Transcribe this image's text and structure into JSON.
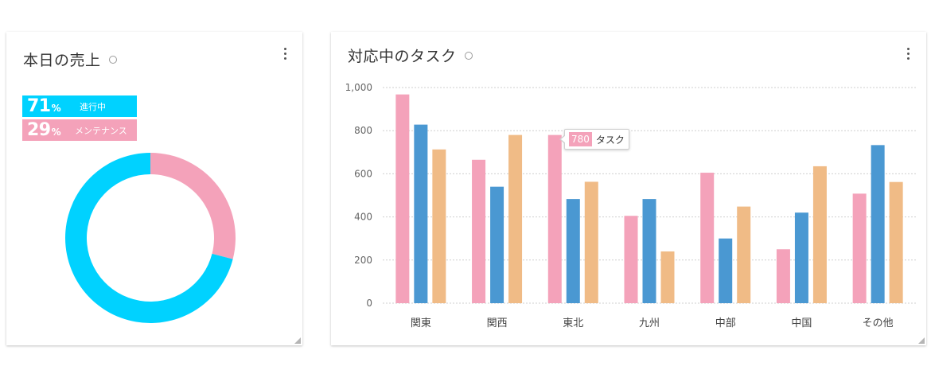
{
  "sales_card": {
    "title": "本日の売上",
    "legend": [
      {
        "percent": "71",
        "unit": "%",
        "label": "進行中",
        "color": "#00d2ff"
      },
      {
        "percent": "29",
        "unit": "%",
        "label": "メンテナンス",
        "color": "#f4a2ba"
      }
    ]
  },
  "tasks_card": {
    "title": "対応中のタスク",
    "tooltip": {
      "value": "780",
      "label": "タスク"
    }
  },
  "chart_data": [
    {
      "type": "pie",
      "title": "本日の売上",
      "donut": true,
      "categories": [
        "進行中",
        "メンテナンス"
      ],
      "values": [
        71,
        29
      ],
      "colors": [
        "#00d2ff",
        "#f4a2ba"
      ]
    },
    {
      "type": "bar",
      "title": "対応中のタスク",
      "categories": [
        "関東",
        "関西",
        "東北",
        "九州",
        "中部",
        "中国",
        "その他"
      ],
      "series": [
        {
          "values": [
            968,
            665,
            780,
            405,
            605,
            250,
            508
          ],
          "color": "#f4a2ba"
        },
        {
          "values": [
            828,
            540,
            483,
            483,
            300,
            420,
            733
          ],
          "color": "#4a98d2"
        },
        {
          "values": [
            713,
            780,
            563,
            240,
            448,
            635,
            562
          ],
          "color": "#f0bb86"
        }
      ],
      "ylim": [
        0,
        1000
      ],
      "yticks": [
        "0",
        "200",
        "400",
        "600",
        "800",
        "1,000"
      ],
      "grid": true
    }
  ]
}
